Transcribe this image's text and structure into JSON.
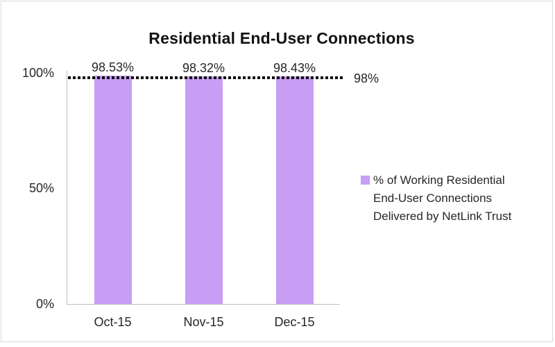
{
  "chart_data": {
    "type": "bar",
    "title": "Residential End-User Connections",
    "categories": [
      "Oct-15",
      "Nov-15",
      "Dec-15"
    ],
    "values": [
      98.53,
      98.32,
      98.43
    ],
    "value_labels": [
      "98.53%",
      "98.32%",
      "98.43%"
    ],
    "ylim": [
      0,
      100
    ],
    "y_ticks": [
      {
        "value": 100,
        "label": "100%"
      },
      {
        "value": 50,
        "label": "50%"
      },
      {
        "value": 0,
        "label": "0%"
      }
    ],
    "reference_line": {
      "value": 98,
      "label": "98%",
      "style": "dotted",
      "color": "#000000"
    },
    "legend": {
      "position": "right",
      "swatch_color": "#c89ef5",
      "lines": [
        "% of Working Residential",
        "End-User Connections",
        "Delivered by NetLink Trust"
      ]
    },
    "colors": {
      "bar": "#c89ef5",
      "axis": "#bfbfbf",
      "text": "#262626",
      "title": "#111111",
      "border": "#d9d9d9"
    },
    "grid": false
  }
}
